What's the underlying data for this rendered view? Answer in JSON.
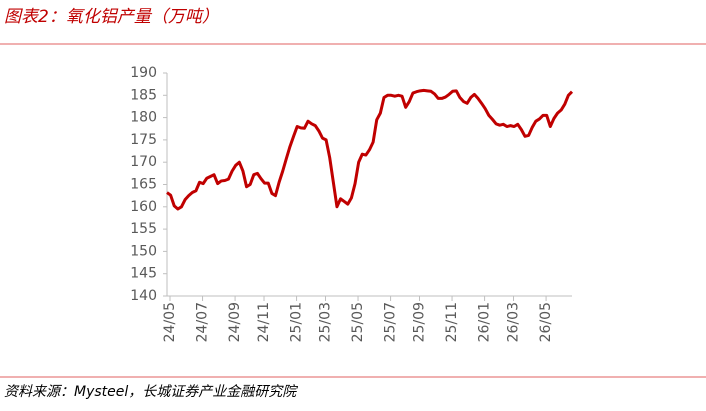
{
  "chart_data": {
    "type": "line",
    "title": "图表2：氧化铝产量（万吨）",
    "source": "资料来源：Mysteel，长城证券产业金融研究院",
    "categories": [
      "24/05",
      null,
      null,
      null,
      null,
      null,
      null,
      null,
      null,
      "24/07",
      null,
      null,
      null,
      null,
      null,
      null,
      null,
      null,
      "24/09",
      null,
      null,
      null,
      null,
      null,
      null,
      null,
      "24/11",
      null,
      null,
      null,
      null,
      null,
      null,
      null,
      null,
      "25/01",
      null,
      null,
      null,
      null,
      null,
      null,
      null,
      "25/03",
      null,
      null,
      null,
      null,
      null,
      null,
      null,
      null,
      "25/05",
      null,
      null,
      null,
      null,
      null,
      null,
      null,
      null,
      "25/07",
      null,
      null,
      null,
      null,
      null,
      null,
      null,
      "25/09",
      null,
      null,
      null,
      null,
      null,
      null,
      null,
      null,
      "25/11",
      null,
      null,
      null,
      null,
      null,
      null,
      null,
      null,
      "26/01",
      null,
      null,
      null,
      null,
      null,
      null,
      null,
      "26/03",
      null,
      null,
      null,
      null,
      null,
      null,
      null,
      null,
      "26/05",
      null,
      null,
      null,
      null,
      null,
      null,
      null,
      null
    ],
    "values": [
      163.2,
      162.6,
      160.2,
      159.5,
      160,
      161.6,
      162.5,
      163.2,
      163.6,
      165.5,
      165.2,
      166.4,
      166.8,
      167.2,
      165.2,
      165.8,
      165.9,
      166.2,
      168,
      169.3,
      170,
      168,
      164.5,
      165,
      167.2,
      167.5,
      166.3,
      165.3,
      165.3,
      163,
      162.5,
      165.5,
      168,
      170.8,
      173.5,
      175.8,
      178,
      177.7,
      177.6,
      179.2,
      178.6,
      178.2,
      177,
      175.4,
      175,
      171,
      165.5,
      160,
      161.8,
      161.2,
      160.6,
      162,
      165.2,
      170,
      171.8,
      171.6,
      172.8,
      174.5,
      179.5,
      181,
      184.5,
      185,
      185,
      184.8,
      185,
      184.8,
      182.3,
      183.6,
      185.5,
      185.8,
      186,
      186.1,
      186,
      185.9,
      185.3,
      184.3,
      184.3,
      184.6,
      185.2,
      185.9,
      186,
      184.5,
      183.6,
      183.2,
      184.5,
      185.2,
      184.3,
      183.2,
      182,
      180.5,
      179.6,
      178.6,
      178.3,
      178.5,
      178,
      178.2,
      178,
      178.5,
      177.3,
      175.8,
      176,
      177.8,
      179.2,
      179.7,
      180.5,
      180.5,
      178,
      179.8,
      181,
      181.7,
      183,
      185,
      185.8
    ],
    "color": "#c00000",
    "ylim": [
      140,
      190
    ],
    "yticks": [
      140,
      145,
      150,
      155,
      160,
      165,
      170,
      175,
      180,
      185,
      190
    ]
  }
}
